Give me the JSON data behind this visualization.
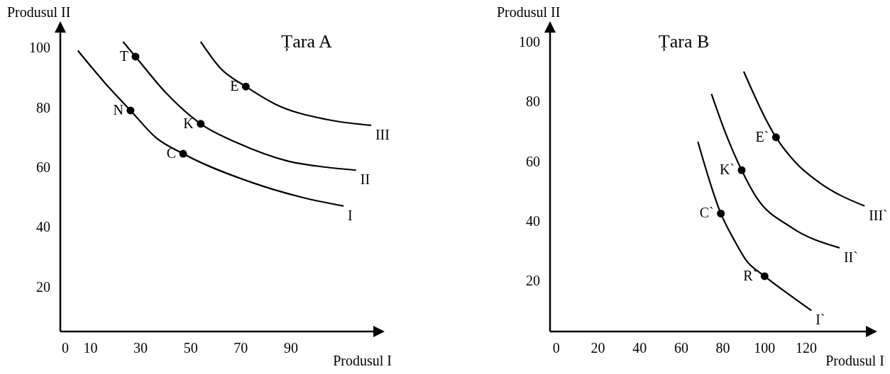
{
  "chart_data": [
    {
      "type": "line",
      "title": "Țara A",
      "xlabel": "Produsul I",
      "ylabel": "Produsul II",
      "xlim": [
        -2,
        124
      ],
      "ylim": [
        5,
        106
      ],
      "xticks": [
        0,
        10,
        30,
        50,
        70,
        90
      ],
      "yticks": [
        20,
        40,
        60,
        80,
        100
      ],
      "grid": false,
      "legend": false,
      "line_style": "solid",
      "series": [
        {
          "color": "#000000",
          "x": [
            5,
            16,
            26,
            36,
            47,
            74,
            94,
            111
          ],
          "values": [
            99,
            88,
            79,
            70,
            64.5,
            55,
            50,
            47
          ]
        },
        {
          "color": "#000000",
          "x": [
            23,
            28,
            40,
            54,
            69,
            89,
            104,
            116
          ],
          "values": [
            102,
            97,
            85,
            74.5,
            68,
            62,
            60,
            59
          ]
        },
        {
          "color": "#000000",
          "x": [
            54,
            62,
            72,
            84,
            104,
            122
          ],
          "values": [
            102,
            93,
            87,
            81,
            76,
            74
          ]
        },
        {
          "type": "scatter",
          "color": "#000000",
          "marker": "circle",
          "x": [
            26,
            47,
            28,
            54,
            72
          ],
          "values": [
            79,
            64.5,
            97,
            74.5,
            87
          ]
        }
      ],
      "annotations": [
        {
          "text": "N",
          "x": 26,
          "y": 79
        },
        {
          "text": "C",
          "x": 47,
          "y": 64.5
        },
        {
          "text": "T",
          "x": 28,
          "y": 97
        },
        {
          "text": "K",
          "x": 54,
          "y": 74.5
        },
        {
          "text": "E",
          "x": 72,
          "y": 87
        },
        {
          "text": "I",
          "x": 111,
          "y": 47
        },
        {
          "text": "II",
          "x": 116,
          "y": 59
        },
        {
          "text": "III",
          "x": 122,
          "y": 74
        }
      ]
    },
    {
      "type": "line",
      "title": "Țara B",
      "xlabel": "Produsul I",
      "ylabel": "Produsul II",
      "xlim": [
        -3,
        150
      ],
      "ylim": [
        3,
        104
      ],
      "xticks": [
        0,
        20,
        40,
        60,
        80,
        100,
        120
      ],
      "yticks": [
        20,
        40,
        60,
        80,
        100
      ],
      "grid": false,
      "legend": false,
      "line_style": "solid",
      "series": [
        {
          "color": "#000000",
          "x": [
            68,
            79,
            85.5,
            91,
            100,
            112.5,
            122.5
          ],
          "values": [
            66.5,
            42.5,
            33.5,
            27,
            21.5,
            15,
            10
          ]
        },
        {
          "color": "#000000",
          "x": [
            74.5,
            81.5,
            89,
            96,
            112.5,
            136
          ],
          "values": [
            82.5,
            69,
            57,
            48,
            38,
            31
          ]
        },
        {
          "color": "#000000",
          "x": [
            90,
            105.5,
            115,
            126,
            148
          ],
          "values": [
            90,
            68,
            59.5,
            53,
            45
          ]
        },
        {
          "type": "scatter",
          "color": "#000000",
          "marker": "circle",
          "x": [
            79,
            100,
            89,
            105.5
          ],
          "values": [
            42.5,
            21.5,
            57,
            68
          ]
        }
      ],
      "annotations": [
        {
          "text": "C`",
          "x": 79,
          "y": 42.5
        },
        {
          "text": "R`",
          "x": 100,
          "y": 21.5
        },
        {
          "text": "K`",
          "x": 89,
          "y": 57
        },
        {
          "text": "E`",
          "x": 105.5,
          "y": 68
        },
        {
          "text": "I`",
          "x": 122.5,
          "y": 10
        },
        {
          "text": "II`",
          "x": 136,
          "y": 31
        },
        {
          "text": "III`",
          "x": 148,
          "y": 45
        }
      ]
    }
  ]
}
